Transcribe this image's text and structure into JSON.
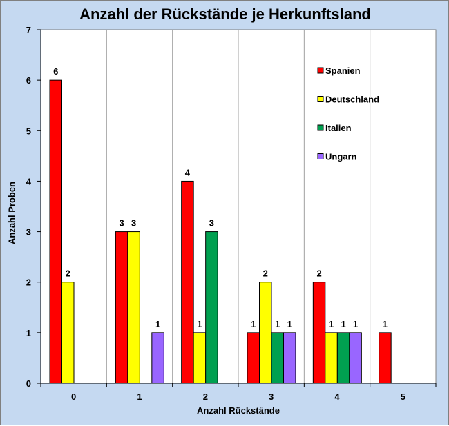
{
  "chart_data": {
    "type": "bar",
    "title": "Anzahl der Rückstände je Herkunftsland",
    "xlabel": "Anzahl Rückstände",
    "ylabel": "Anzahl Proben",
    "categories": [
      "0",
      "1",
      "2",
      "3",
      "4",
      "5"
    ],
    "ylim": [
      0,
      7
    ],
    "yticks": [
      "0",
      "1",
      "2",
      "3",
      "4",
      "5",
      "6",
      "7"
    ],
    "grid": "vertical category separators",
    "legend_position": "top-right",
    "series": [
      {
        "name": "Spanien",
        "color": "#ff0000",
        "values": [
          6,
          3,
          4,
          1,
          2,
          1
        ]
      },
      {
        "name": "Deutschland",
        "color": "#ffff00",
        "values": [
          2,
          3,
          1,
          2,
          1,
          0
        ]
      },
      {
        "name": "Italien",
        "color": "#00a050",
        "values": [
          0,
          0,
          3,
          1,
          1,
          0
        ]
      },
      {
        "name": "Ungarn",
        "color": "#9966ff",
        "values": [
          0,
          1,
          0,
          1,
          1,
          0
        ]
      }
    ]
  }
}
